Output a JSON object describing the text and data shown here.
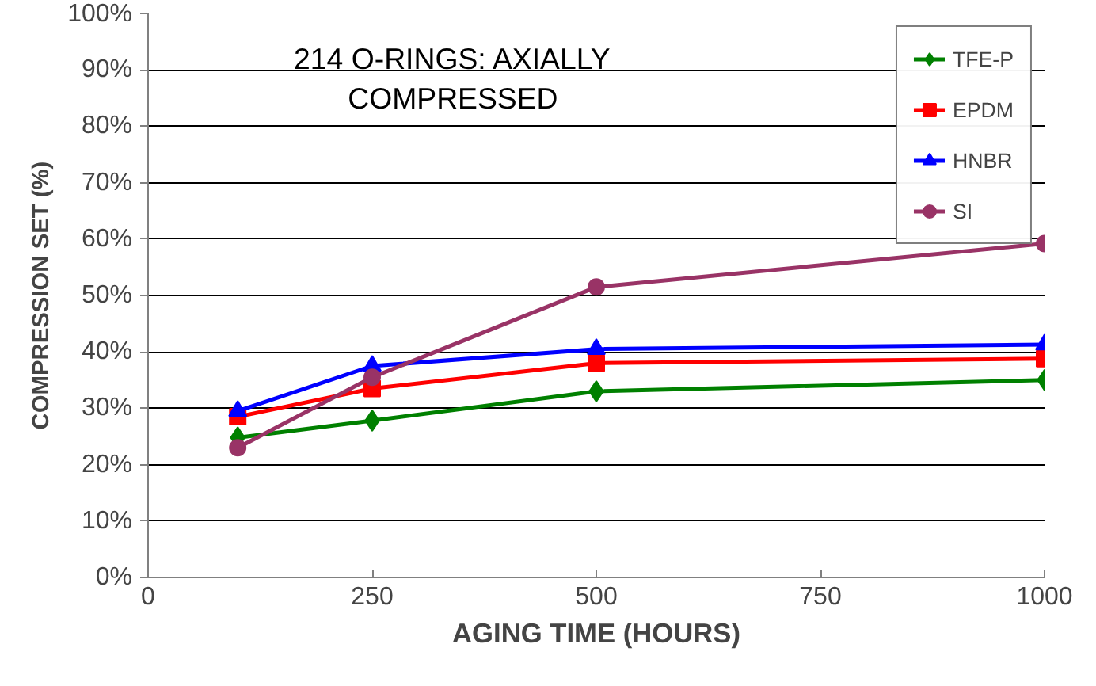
{
  "chart_data": {
    "type": "line",
    "title": "214 O-RINGS: AXIALLY\nCOMPRESSED",
    "xlabel": "AGING TIME (HOURS)",
    "ylabel": "COMPRESSION SET (%)",
    "x": [
      100,
      250,
      500,
      1000
    ],
    "series": [
      {
        "name": "TFE-P",
        "color": "#008000",
        "marker": "diamond",
        "values": [
          24.8,
          27.8,
          33.0,
          35.0
        ]
      },
      {
        "name": "EPDM",
        "color": "#ff0000",
        "marker": "square",
        "values": [
          28.5,
          33.5,
          38.0,
          38.8
        ]
      },
      {
        "name": "HNBR",
        "color": "#0000ff",
        "marker": "triangle",
        "values": [
          29.5,
          37.5,
          40.5,
          41.3
        ]
      },
      {
        "name": "SI",
        "color": "#993366",
        "marker": "circle",
        "values": [
          23.0,
          35.5,
          51.5,
          59.2
        ]
      }
    ],
    "xlim": [
      0,
      1000
    ],
    "xticks": [
      0,
      250,
      500,
      750,
      1000
    ],
    "ylim": [
      0,
      100
    ],
    "yticks": [
      {
        "value": 0,
        "label": "0%"
      },
      {
        "value": 10,
        "label": "10%"
      },
      {
        "value": 20,
        "label": "20%"
      },
      {
        "value": 30,
        "label": "30%"
      },
      {
        "value": 40,
        "label": "40%"
      },
      {
        "value": 50,
        "label": "50%"
      },
      {
        "value": 60,
        "label": "60%"
      },
      {
        "value": 70,
        "label": "70%"
      },
      {
        "value": 80,
        "label": "80%"
      },
      {
        "value": 90,
        "label": "90%"
      },
      {
        "value": 100,
        "label": "100%"
      }
    ],
    "grid": "y",
    "legend": "top right",
    "line_style": "solid"
  }
}
